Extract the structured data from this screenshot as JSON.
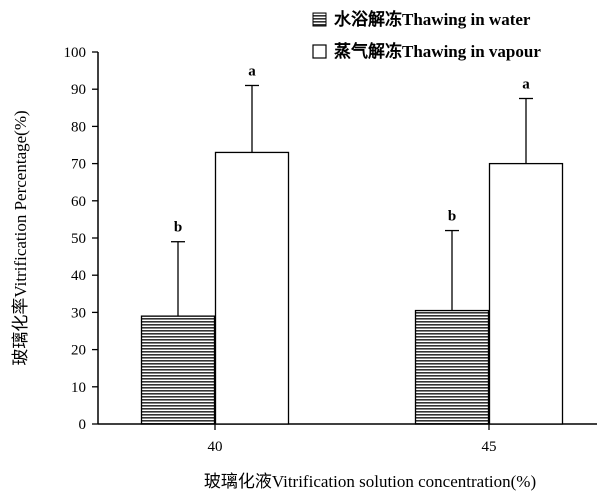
{
  "chart_data": {
    "type": "bar",
    "xlabel": "玻璃化液Vitrification solution concentration(%)",
    "ylabel": "玻璃化率Vitrification Percentage(%)",
    "ylim": [
      0,
      100
    ],
    "yticks": [
      0,
      10,
      20,
      30,
      40,
      50,
      60,
      70,
      80,
      90,
      100
    ],
    "categories": [
      "40",
      "45"
    ],
    "grid": false,
    "legend_position": "top-right",
    "series": [
      {
        "name": "水浴解冻Thawing in water",
        "pattern": "horizontal-hatch",
        "values": [
          29,
          30.5
        ],
        "error": [
          20,
          21.5
        ],
        "labels": [
          "b",
          "b"
        ]
      },
      {
        "name": "蒸气解冻Thawing in vapour",
        "pattern": "white",
        "values": [
          73,
          70
        ],
        "error": [
          18,
          17.5
        ],
        "labels": [
          "a",
          "a"
        ]
      }
    ]
  }
}
